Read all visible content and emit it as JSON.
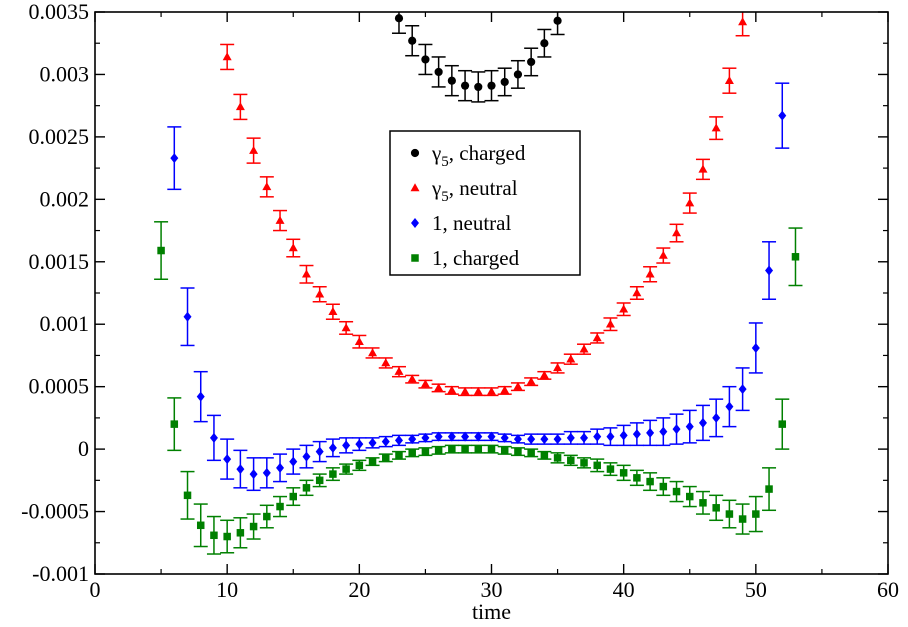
{
  "chart_data": {
    "type": "scatter",
    "title": "",
    "xlabel": "time",
    "ylabel": "",
    "xlim": [
      0,
      60
    ],
    "ylim": [
      -0.001,
      0.0035
    ],
    "x_ticks": [
      0,
      10,
      20,
      30,
      40,
      50,
      60
    ],
    "x_tick_labels": [
      "0",
      "10",
      "20",
      "30",
      "40",
      "50",
      "60"
    ],
    "y_ticks": [
      -0.001,
      -0.0005,
      0,
      0.0005,
      0.001,
      0.0015,
      0.002,
      0.0025,
      0.003,
      0.0035
    ],
    "y_tick_labels": [
      "-0.001",
      "-0.0005",
      "0",
      "0.0005",
      "0.001",
      "0.0015",
      "0.002",
      "0.0025",
      "0.003",
      "0.0035"
    ],
    "grid": false,
    "legend_position": "center",
    "series": [
      {
        "name_main": "γ",
        "name_sub": "5",
        "name_rest": ", charged",
        "marker": "circle",
        "color": "#000000",
        "x": [
          23,
          24,
          25,
          26,
          27,
          28,
          29,
          30,
          31,
          32,
          33,
          34,
          35
        ],
        "y": [
          0.00345,
          0.00327,
          0.00312,
          0.00302,
          0.00295,
          0.00291,
          0.0029,
          0.00291,
          0.00294,
          0.003,
          0.0031,
          0.00325,
          0.00343
        ],
        "err": [
          0.00012,
          0.00012,
          0.00012,
          0.00012,
          0.00012,
          0.00012,
          0.00012,
          0.00012,
          0.00011,
          0.00011,
          0.00011,
          0.00011,
          0.00011
        ]
      },
      {
        "name_main": "γ",
        "name_sub": "5",
        "name_rest": ", neutral",
        "marker": "triangle",
        "color": "#ff0000",
        "x": [
          10,
          11,
          12,
          13,
          14,
          15,
          16,
          17,
          18,
          19,
          20,
          21,
          22,
          23,
          24,
          25,
          26,
          27,
          28,
          29,
          30,
          31,
          32,
          33,
          34,
          35,
          36,
          37,
          38,
          39,
          40,
          41,
          42,
          43,
          44,
          45,
          46,
          47,
          48,
          49
        ],
        "y": [
          0.00314,
          0.00274,
          0.00239,
          0.0021,
          0.00183,
          0.00161,
          0.0014,
          0.00124,
          0.0011,
          0.00097,
          0.00086,
          0.00077,
          0.00069,
          0.00062,
          0.00056,
          0.00052,
          0.00049,
          0.00047,
          0.00046,
          0.00046,
          0.00046,
          0.00047,
          0.0005,
          0.00054,
          0.00059,
          0.00065,
          0.00072,
          0.0008,
          0.00089,
          0.001,
          0.00112,
          0.00125,
          0.0014,
          0.00155,
          0.00173,
          0.00197,
          0.00224,
          0.00257,
          0.00295,
          0.00342
        ],
        "err": [
          0.0001,
          0.0001,
          0.0001,
          8e-05,
          8e-05,
          7e-05,
          7e-05,
          6e-05,
          6e-05,
          5e-05,
          5e-05,
          4e-05,
          4e-05,
          4e-05,
          3e-05,
          3e-05,
          3e-05,
          3e-05,
          3e-05,
          3e-05,
          3e-05,
          3e-05,
          3e-05,
          3e-05,
          3e-05,
          4e-05,
          4e-05,
          4e-05,
          4e-05,
          5e-05,
          5e-05,
          5e-05,
          6e-05,
          6e-05,
          7e-05,
          8e-05,
          8e-05,
          9e-05,
          0.0001,
          0.00011
        ]
      },
      {
        "name_main": "1",
        "name_sub": "",
        "name_rest": ", neutral",
        "marker": "diamond",
        "color": "#0000ff",
        "x": [
          6,
          7,
          8,
          9,
          10,
          11,
          12,
          13,
          14,
          15,
          16,
          17,
          18,
          19,
          20,
          21,
          22,
          23,
          24,
          25,
          26,
          27,
          28,
          29,
          30,
          31,
          32,
          33,
          34,
          35,
          36,
          37,
          38,
          39,
          40,
          41,
          42,
          43,
          44,
          45,
          46,
          47,
          48,
          49,
          50,
          51,
          52
        ],
        "y": [
          0.00233,
          0.00106,
          0.00042,
          9e-05,
          -8e-05,
          -0.00016,
          -0.0002,
          -0.00019,
          -0.00015,
          -0.0001,
          -6e-05,
          -2e-05,
          1e-05,
          3e-05,
          4e-05,
          5e-05,
          6e-05,
          7e-05,
          8e-05,
          9e-05,
          0.0001,
          0.0001,
          0.0001,
          0.0001,
          0.0001,
          9e-05,
          8e-05,
          8e-05,
          8e-05,
          8e-05,
          9e-05,
          9e-05,
          0.0001,
          0.0001,
          0.00011,
          0.00012,
          0.00013,
          0.00014,
          0.00016,
          0.00018,
          0.00021,
          0.00025,
          0.00034,
          0.00048,
          0.00081,
          0.00143,
          0.00267
        ],
        "err": [
          0.00025,
          0.00023,
          0.0002,
          0.00018,
          0.00016,
          0.00015,
          0.00013,
          0.00012,
          0.00011,
          0.0001,
          9e-05,
          8e-05,
          7e-05,
          6e-05,
          5e-05,
          4e-05,
          4e-05,
          4e-05,
          3e-05,
          3e-05,
          3e-05,
          3e-05,
          3e-05,
          3e-05,
          3e-05,
          3e-05,
          3e-05,
          4e-05,
          4e-05,
          4e-05,
          5e-05,
          5e-05,
          6e-05,
          7e-05,
          8e-05,
          9e-05,
          0.0001,
          0.00011,
          0.00012,
          0.00013,
          0.00014,
          0.00015,
          0.00016,
          0.00017,
          0.0002,
          0.00023,
          0.00026
        ]
      },
      {
        "name_main": "1",
        "name_sub": "",
        "name_rest": ", charged",
        "marker": "square",
        "color": "#008000",
        "x": [
          5,
          6,
          7,
          8,
          9,
          10,
          11,
          12,
          13,
          14,
          15,
          16,
          17,
          18,
          19,
          20,
          21,
          22,
          23,
          24,
          25,
          26,
          27,
          28,
          29,
          30,
          31,
          32,
          33,
          34,
          35,
          36,
          37,
          38,
          39,
          40,
          41,
          42,
          43,
          44,
          45,
          46,
          47,
          48,
          49,
          50,
          51,
          52,
          53
        ],
        "y": [
          0.00159,
          0.0002,
          -0.00037,
          -0.00061,
          -0.00069,
          -0.0007,
          -0.00067,
          -0.00062,
          -0.00054,
          -0.00046,
          -0.00038,
          -0.00031,
          -0.00025,
          -0.0002,
          -0.00016,
          -0.00013,
          -0.0001,
          -7e-05,
          -5e-05,
          -3e-05,
          -2e-05,
          -1e-05,
          0,
          0,
          0,
          0,
          -1e-05,
          -2e-05,
          -3e-05,
          -5e-05,
          -7e-05,
          -9e-05,
          -0.00011,
          -0.00013,
          -0.00016,
          -0.00019,
          -0.00023,
          -0.00026,
          -0.0003,
          -0.00034,
          -0.00038,
          -0.00043,
          -0.00047,
          -0.00052,
          -0.00056,
          -0.00052,
          -0.00032,
          0.0002,
          0.00154
        ],
        "err": [
          0.00023,
          0.00021,
          0.00019,
          0.00017,
          0.00015,
          0.00013,
          0.00012,
          0.0001,
          9e-05,
          8e-05,
          7e-05,
          6e-05,
          5e-05,
          5e-05,
          4e-05,
          4e-05,
          3e-05,
          3e-05,
          3e-05,
          3e-05,
          3e-05,
          3e-05,
          3e-05,
          3e-05,
          3e-05,
          3e-05,
          3e-05,
          3e-05,
          3e-05,
          3e-05,
          4e-05,
          4e-05,
          4e-05,
          5e-05,
          5e-05,
          6e-05,
          6e-05,
          7e-05,
          7e-05,
          8e-05,
          8e-05,
          9e-05,
          0.0001,
          0.00011,
          0.00012,
          0.00014,
          0.00017,
          0.0002,
          0.00023
        ]
      }
    ]
  }
}
